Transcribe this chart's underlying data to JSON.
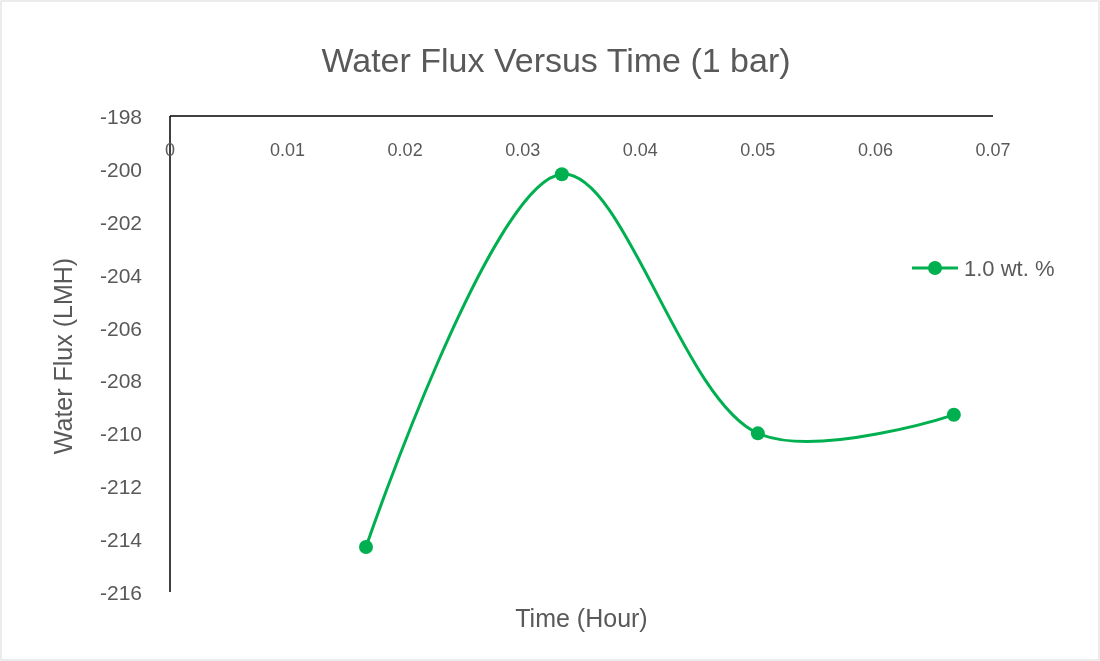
{
  "chart_data": {
    "type": "line",
    "title": "Water Flux Versus Time (1 bar)",
    "xlabel": "Time (Hour)",
    "ylabel": "Water Flux (LMH)",
    "x": [
      0.01667,
      0.03333,
      0.05,
      0.06667
    ],
    "series": [
      {
        "name": "1.0 wt. %",
        "color": "#00b050",
        "values": [
          -214.3,
          -200.2,
          -210.0,
          -209.3
        ]
      }
    ],
    "xlim": [
      0,
      0.07
    ],
    "xticks": [
      0,
      0.01,
      0.02,
      0.03,
      0.04,
      0.05,
      0.06,
      0.07
    ],
    "ylim": [
      -216,
      -198
    ],
    "yticks": [
      -198,
      -200,
      -202,
      -204,
      -206,
      -208,
      -210,
      -212,
      -214,
      -216
    ],
    "grid": false,
    "legend": "right",
    "marker": "circle",
    "line_style": "solid"
  }
}
